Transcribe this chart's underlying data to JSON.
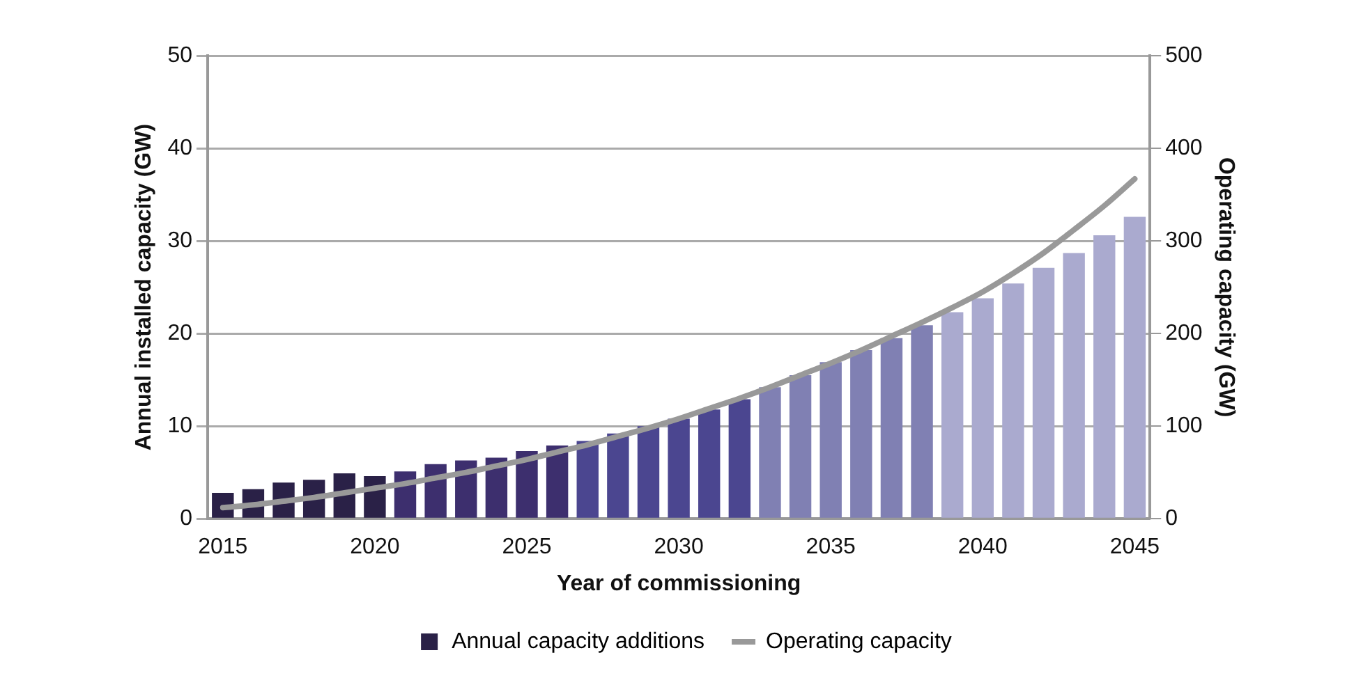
{
  "chart_data": {
    "type": "bar",
    "xlabel": "Year of commissioning",
    "ylabel": "Annual installed capacity (GW)",
    "y2label": "Operating capacity (GW)",
    "categories": [
      "2015",
      null,
      null,
      null,
      null,
      "2020",
      null,
      null,
      null,
      null,
      "2025",
      null,
      null,
      null,
      null,
      "2030",
      null,
      null,
      null,
      null,
      "2035",
      null,
      null,
      null,
      null,
      "2040",
      null,
      null,
      null,
      null,
      "2045"
    ],
    "series": [
      {
        "name": "Annual capacity additions",
        "color": "#2a2147",
        "colors": [
          "#2a2147",
          "#2a2147",
          "#2a2147",
          "#2a2147",
          "#2a2147",
          "#2a2147",
          "#3d2f6e",
          "#3d2f6e",
          "#3d2f6e",
          "#3d2f6e",
          "#3d2f6e",
          "#3d2f6e",
          "#4b4690",
          "#4b4690",
          "#4b4690",
          "#4b4690",
          "#4b4690",
          "#4b4690",
          "#8080b3",
          "#8080b3",
          "#8080b3",
          "#8080b3",
          "#8080b3",
          "#8080b3",
          "#aaaacf",
          "#aaaacf",
          "#aaaacf",
          "#aaaacf",
          "#aaaacf",
          "#aaaacf",
          "#aaaacf"
        ],
        "values": [
          2.8,
          3.2,
          3.9,
          4.2,
          4.9,
          4.6,
          5.1,
          5.9,
          6.3,
          6.6,
          7.3,
          7.9,
          8.4,
          9.2,
          10.0,
          10.8,
          11.8,
          12.9,
          14.2,
          15.5,
          16.9,
          18.2,
          19.5,
          20.9,
          22.3,
          23.8,
          25.4,
          27.1,
          28.7,
          30.6,
          32.6
        ]
      },
      {
        "name": "Operating capacity",
        "type": "line",
        "axis": "y2",
        "color": "#999999",
        "values": [
          12,
          15,
          19,
          23,
          28,
          33,
          38,
          44,
          50,
          57,
          64,
          72,
          80,
          89,
          98,
          108,
          119,
          130,
          142,
          155,
          168,
          182,
          197,
          212,
          228,
          245,
          265,
          287,
          312,
          338,
          367
        ]
      }
    ],
    "ylim": [
      0,
      50
    ],
    "yticks": [
      0,
      10,
      20,
      30,
      40,
      50
    ],
    "y2lim": [
      0,
      500
    ],
    "y2ticks": [
      0,
      100,
      200,
      300,
      400,
      500
    ],
    "grid": "y",
    "legend": "bottom",
    "marker": "none"
  }
}
